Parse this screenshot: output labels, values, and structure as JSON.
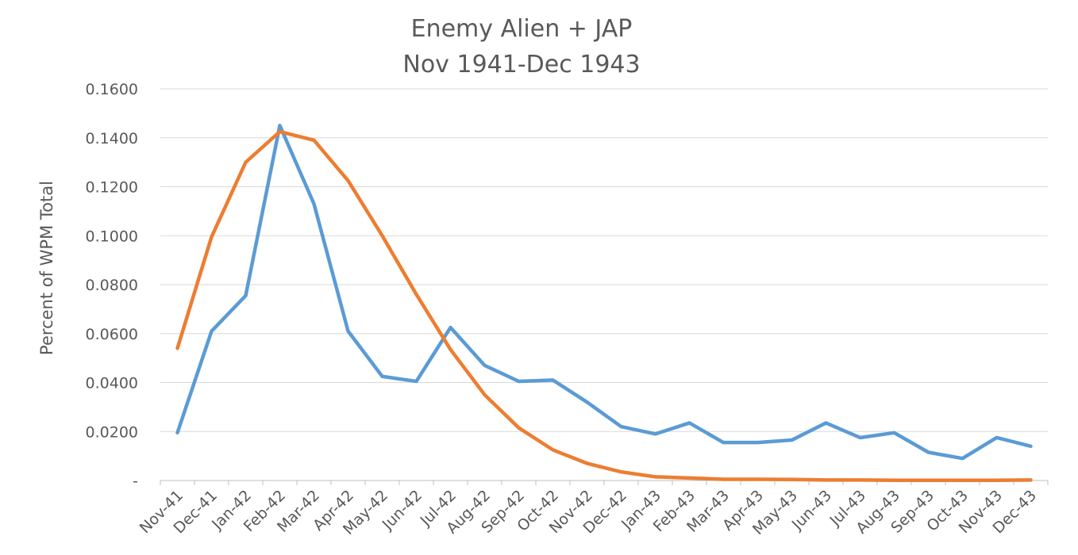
{
  "chart_data": {
    "type": "line",
    "title": [
      "Enemy Alien + JAP",
      "Nov 1941-Dec 1943"
    ],
    "ylabel": "Percent of WPM Total",
    "xlabel": "",
    "ylim": [
      0,
      0.16
    ],
    "y_ticks": [
      0,
      0.02,
      0.04,
      0.06,
      0.08,
      0.1,
      0.12,
      0.14,
      0.16
    ],
    "y_tick_labels": [
      "-",
      "0.0200",
      "0.0400",
      "0.0600",
      "0.0800",
      "0.1000",
      "0.1200",
      "0.1400",
      "0.1600"
    ],
    "grid": true,
    "legend": "none",
    "categories": [
      "Nov-41",
      "Dec-41",
      "Jan-42",
      "Feb-42",
      "Mar-42",
      "Apr-42",
      "May-42",
      "Jun-42",
      "Jul-42",
      "Aug-42",
      "Sep-42",
      "Oct-42",
      "Nov-42",
      "Dec-42",
      "Jan-43",
      "Feb-43",
      "Mar-43",
      "Apr-43",
      "May-43",
      "Jun-43",
      "Jul-43",
      "Aug-43",
      "Sep-43",
      "Oct-43",
      "Nov-43",
      "Dec-43"
    ],
    "series": [
      {
        "color": "#5b9bd5",
        "values": [
          0.0195,
          0.061,
          0.0755,
          0.145,
          0.113,
          0.061,
          0.0425,
          0.0405,
          0.0625,
          0.047,
          0.0405,
          0.041,
          0.032,
          0.022,
          0.019,
          0.0235,
          0.0155,
          0.0155,
          0.0165,
          0.0235,
          0.0175,
          0.0195,
          0.0115,
          0.009,
          0.0175,
          0.014
        ]
      },
      {
        "color": "#ed7d31",
        "values": [
          0.054,
          0.0995,
          0.13,
          0.1425,
          0.139,
          0.1225,
          0.1,
          0.076,
          0.0535,
          0.035,
          0.0215,
          0.0125,
          0.007,
          0.0035,
          0.0015,
          0.001,
          0.0005,
          0.0005,
          0.0004,
          0.0002,
          0.0002,
          0.0001,
          0.0001,
          0.0001,
          0.0001,
          0.0002
        ]
      }
    ]
  }
}
